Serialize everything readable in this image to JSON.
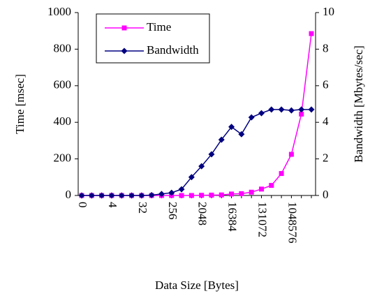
{
  "chart_data": {
    "type": "line",
    "xlabel": "Data Size [Bytes]",
    "ylabel": "Time [msec]",
    "y2label": "Bandwidth [Mbytes/sec]",
    "categories": [
      0,
      null,
      null,
      4,
      null,
      null,
      32,
      null,
      null,
      256,
      null,
      null,
      2048,
      null,
      null,
      16384,
      null,
      null,
      131072,
      null,
      null,
      1048576,
      null,
      null
    ],
    "series": [
      {
        "name": "Time",
        "color": "#ff00ff",
        "marker": "square",
        "values": [
          0,
          0,
          0,
          0,
          0,
          0,
          0,
          0,
          0,
          0,
          0,
          0,
          1,
          2,
          3,
          8,
          10,
          18,
          35,
          55,
          120,
          225,
          445,
          885
        ]
      },
      {
        "name": "Bandwidth",
        "color": "#000080",
        "marker": "diamond",
        "axis": "y2",
        "values": [
          0,
          0,
          0,
          0,
          0,
          0,
          0,
          0.02,
          0.08,
          0.15,
          0.34,
          1.0,
          1.6,
          2.25,
          3.05,
          3.75,
          3.35,
          4.27,
          4.5,
          4.7,
          4.7,
          4.65,
          4.7,
          4.7
        ]
      }
    ],
    "ylim": [
      0,
      1000
    ],
    "yticks": [
      0,
      200,
      400,
      600,
      800,
      1000
    ],
    "y2lim": [
      0,
      10
    ],
    "y2ticks": [
      0,
      2,
      4,
      6,
      8,
      10
    ],
    "legend": "upper left"
  }
}
